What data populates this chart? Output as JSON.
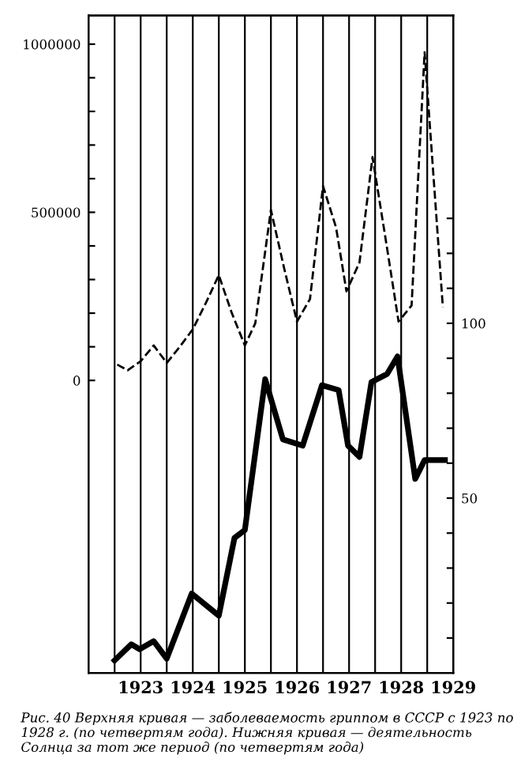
{
  "chart_data": {
    "type": "line",
    "annotations": [
      "Рис. 40 Верхняя кривая — заболеваемость гриппом в СССР с 1923 по 1928 г. (по четвертям года). Нижняя кривая — деятельность Солнца за тот же период (по четвертям года)"
    ],
    "series": [
      {
        "axis": "y",
        "line_style": "dashed",
        "color": "#000000",
        "x": [
          1923.05,
          1923.25,
          1923.5,
          1923.75,
          1924.0,
          1924.25,
          1924.5,
          1924.75,
          1925.0,
          1925.25,
          1925.5,
          1925.7,
          1926.0,
          1926.25,
          1926.5,
          1926.75,
          1927.0,
          1927.25,
          1927.45,
          1927.7,
          1927.95,
          1928.2,
          1928.45,
          1928.7,
          1928.95,
          1929.3
        ],
        "values": [
          47000,
          30000,
          57000,
          104000,
          52000,
          100000,
          152000,
          230000,
          313000,
          200000,
          104000,
          170000,
          507000,
          336000,
          175000,
          242000,
          578000,
          455000,
          265000,
          351000,
          664000,
          422000,
          175000,
          223000,
          976000,
          218000
        ]
      },
      {
        "axis": "y2",
        "line_style": "solid",
        "color": "#000000",
        "x": [
          1923.0,
          1923.32,
          1923.48,
          1923.75,
          1924.0,
          1924.48,
          1925.0,
          1925.3,
          1925.5,
          1925.89,
          1926.23,
          1926.61,
          1926.98,
          1927.3,
          1927.48,
          1927.7,
          1927.93,
          1928.23,
          1928.43,
          1928.77,
          1928.95,
          1929.34
        ],
        "values": [
          3.6,
          8.2,
          6.8,
          9.1,
          4.1,
          22.7,
          16.4,
          38.6,
          40.9,
          84,
          66.8,
          65,
          82.3,
          80.9,
          65,
          61.8,
          83.2,
          85.5,
          90.5,
          55.5,
          60.9,
          60.9
        ]
      }
    ],
    "xlim": [
      1922.5,
      1929.5
    ],
    "xticks": [
      {
        "value": 1923.0,
        "label": null
      },
      {
        "value": 1923.5,
        "label": "1923"
      },
      {
        "value": 1924.0,
        "label": null
      },
      {
        "value": 1924.5,
        "label": "1924"
      },
      {
        "value": 1925.0,
        "label": null
      },
      {
        "value": 1925.5,
        "label": "1925"
      },
      {
        "value": 1926.0,
        "label": null
      },
      {
        "value": 1926.5,
        "label": "1926"
      },
      {
        "value": 1927.0,
        "label": null
      },
      {
        "value": 1927.5,
        "label": "1927"
      },
      {
        "value": 1928.0,
        "label": null
      },
      {
        "value": 1928.5,
        "label": "1928"
      },
      {
        "value": 1929.0,
        "label": null
      },
      {
        "value": 1929.5,
        "label": "1929"
      }
    ],
    "ylim": [
      -870000,
      1085000
    ],
    "yticks": [
      0,
      {
        "value": 100000,
        "label": null
      },
      {
        "value": 200000,
        "label": null
      },
      {
        "value": 300000,
        "label": null
      },
      {
        "value": 400000,
        "label": null
      },
      500000,
      {
        "value": 600000,
        "label": null
      },
      {
        "value": 700000,
        "label": null
      },
      {
        "value": 800000,
        "label": null
      },
      {
        "value": 900000,
        "label": null
      },
      1000000
    ],
    "y2lim": [
      0,
      188
    ],
    "y2ticks": [
      {
        "value": 10,
        "label": null
      },
      {
        "value": 20,
        "label": null
      },
      {
        "value": 30,
        "label": null
      },
      {
        "value": 40,
        "label": null
      },
      50,
      {
        "value": 60,
        "label": null
      },
      {
        "value": 70,
        "label": null
      },
      {
        "value": 80,
        "label": null
      },
      {
        "value": 90,
        "label": null
      },
      100,
      {
        "value": 110,
        "label": null
      },
      {
        "value": 120,
        "label": null
      },
      {
        "value": 130,
        "label": null
      }
    ],
    "grid": "x"
  }
}
